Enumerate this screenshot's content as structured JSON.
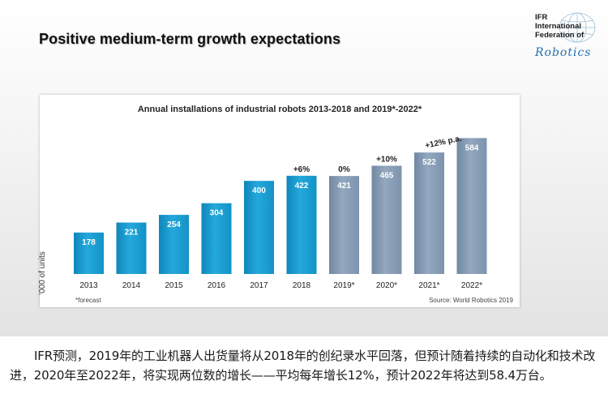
{
  "slide": {
    "title": "Positive medium-term growth expectations",
    "logo": {
      "line1": "IFR",
      "line2": "International",
      "line3": "Federation of",
      "line4": "Robotics"
    }
  },
  "chart_data": {
    "type": "bar",
    "title": "Annual installations of industrial robots 2013-2018 and 2019*-2022*",
    "ylabel": "'000 of units",
    "xlabel": "",
    "categories": [
      "2013",
      "2014",
      "2015",
      "2016",
      "2017",
      "2018",
      "2019*",
      "2020*",
      "2021*",
      "2022*"
    ],
    "values": [
      178,
      221,
      254,
      304,
      400,
      422,
      421,
      465,
      522,
      584
    ],
    "kind": [
      "actual",
      "actual",
      "actual",
      "actual",
      "actual",
      "actual",
      "forecast",
      "forecast",
      "forecast",
      "forecast"
    ],
    "growth_annotations": [
      {
        "category": "2018",
        "text": "+6%"
      },
      {
        "category": "2019*",
        "text": "0%"
      },
      {
        "category": "2020*",
        "text": "+10%"
      },
      {
        "category": "2021*",
        "text": "+12% p.a."
      }
    ],
    "ylim": [
      0,
      700
    ],
    "grid": false,
    "colors": {
      "actual": "#1aa0d2",
      "forecast": "#8aa0b8"
    },
    "footnote": "*forecast",
    "source": "Source: World Robotics 2019"
  },
  "caption": {
    "text": "IFR预测，2019年的工业机器人出货量将从2018年的创纪录水平回落，但预计随着持续的自动化和技术改进，2020年至2022年，将实现两位数的增长——平均每年增长12%，预计2022年将达到58.4万台。"
  }
}
